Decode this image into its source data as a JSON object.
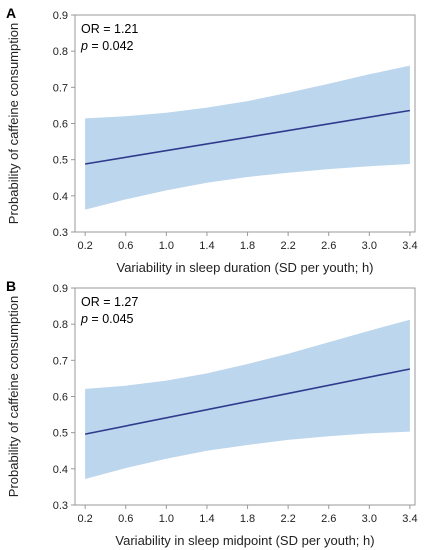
{
  "chart_data": [
    {
      "panel": "A",
      "type": "line",
      "xlabel": "Variability in sleep duration (SD per youth; h)",
      "ylabel": "Probability of caffeine consumption",
      "xlim": [
        0.1,
        3.45
      ],
      "ylim": [
        0.3,
        0.9
      ],
      "xticks": [
        "0.2",
        "0.6",
        "1.0",
        "1.4",
        "1.8",
        "2.2",
        "2.6",
        "3.0",
        "3.4"
      ],
      "yticks": [
        "0.3",
        "0.4",
        "0.5",
        "0.6",
        "0.7",
        "0.8",
        "0.9"
      ],
      "annotation": {
        "or_text": "OR = 1.21",
        "p_symbol": "p",
        "p_text": " = 0.042"
      },
      "line": {
        "x": [
          0.2,
          3.4
        ],
        "y": [
          0.488,
          0.636
        ]
      },
      "ci_band": {
        "x": [
          0.2,
          0.6,
          1.0,
          1.4,
          1.8,
          2.2,
          2.6,
          3.0,
          3.4
        ],
        "upper": [
          0.614,
          0.62,
          0.63,
          0.644,
          0.662,
          0.685,
          0.71,
          0.736,
          0.76
        ],
        "lower": [
          0.362,
          0.39,
          0.415,
          0.436,
          0.452,
          0.464,
          0.474,
          0.482,
          0.488
        ]
      },
      "colors": {
        "line": "#2e3a8c",
        "band": "#bcd6ee",
        "axis": "#999999"
      },
      "grid": false
    },
    {
      "panel": "B",
      "type": "line",
      "xlabel": "Variability in sleep midpoint (SD per youth; h)",
      "ylabel": "Probability of caffeine consumption",
      "xlim": [
        0.1,
        3.45
      ],
      "ylim": [
        0.3,
        0.9
      ],
      "xticks": [
        "0.2",
        "0.6",
        "1.0",
        "1.4",
        "1.8",
        "2.2",
        "2.6",
        "3.0",
        "3.4"
      ],
      "yticks": [
        "0.3",
        "0.4",
        "0.5",
        "0.6",
        "0.7",
        "0.8",
        "0.9"
      ],
      "annotation": {
        "or_text": "OR = 1.27",
        "p_symbol": "p",
        "p_text": " = 0.045"
      },
      "line": {
        "x": [
          0.2,
          3.4
        ],
        "y": [
          0.496,
          0.676
        ]
      },
      "ci_band": {
        "x": [
          0.2,
          0.6,
          1.0,
          1.4,
          1.8,
          2.2,
          2.6,
          3.0,
          3.4
        ],
        "upper": [
          0.621,
          0.63,
          0.644,
          0.664,
          0.69,
          0.718,
          0.75,
          0.782,
          0.812
        ],
        "lower": [
          0.372,
          0.402,
          0.428,
          0.45,
          0.466,
          0.48,
          0.49,
          0.498,
          0.503
        ]
      },
      "colors": {
        "line": "#2e3a8c",
        "band": "#bcd6ee",
        "axis": "#999999"
      },
      "grid": false
    }
  ]
}
